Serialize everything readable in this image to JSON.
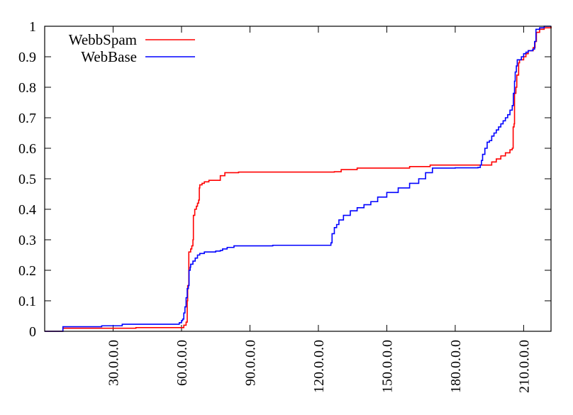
{
  "chart_data": {
    "type": "line",
    "title": "",
    "xlabel": "",
    "ylabel": "",
    "xlim": [
      0,
      222
    ],
    "ylim": [
      0,
      1
    ],
    "x_ticks": [
      30,
      60,
      90,
      120,
      150,
      180,
      210
    ],
    "x_tick_labels": [
      "30.0.0.0",
      "60.0.0.0",
      "90.0.0.0",
      "120.0.0.0",
      "150.0.0.0",
      "180.0.0.0",
      "210.0.0.0"
    ],
    "y_ticks": [
      0,
      0.1,
      0.2,
      0.3,
      0.4,
      0.5,
      0.6,
      0.7,
      0.8,
      0.9,
      1
    ],
    "y_tick_labels": [
      "0",
      "0.1",
      "0.2",
      "0.3",
      "0.4",
      "0.5",
      "0.6",
      "0.7",
      "0.8",
      "0.9",
      "1"
    ],
    "grid": false,
    "legend_position": "top-left",
    "series": [
      {
        "name": "WebbSpam",
        "color": "#ff0000",
        "points": [
          [
            0,
            0
          ],
          [
            8,
            0
          ],
          [
            8,
            0.01
          ],
          [
            20,
            0.01
          ],
          [
            40,
            0.012
          ],
          [
            58,
            0.012
          ],
          [
            61,
            0.02
          ],
          [
            62,
            0.03
          ],
          [
            62.5,
            0.1
          ],
          [
            62.7,
            0.15
          ],
          [
            63.2,
            0.26
          ],
          [
            64,
            0.27
          ],
          [
            64.5,
            0.28
          ],
          [
            65,
            0.3
          ],
          [
            65.2,
            0.38
          ],
          [
            65.8,
            0.4
          ],
          [
            66.5,
            0.41
          ],
          [
            67,
            0.42
          ],
          [
            67.5,
            0.43
          ],
          [
            67.8,
            0.47
          ],
          [
            68,
            0.48
          ],
          [
            69,
            0.485
          ],
          [
            70,
            0.49
          ],
          [
            72,
            0.495
          ],
          [
            77,
            0.495
          ],
          [
            77,
            0.51
          ],
          [
            79,
            0.52
          ],
          [
            85,
            0.522
          ],
          [
            100,
            0.522
          ],
          [
            127,
            0.523
          ],
          [
            130,
            0.53
          ],
          [
            137,
            0.535
          ],
          [
            160,
            0.54
          ],
          [
            169,
            0.545
          ],
          [
            193,
            0.545
          ],
          [
            196,
            0.555
          ],
          [
            198,
            0.565
          ],
          [
            200,
            0.575
          ],
          [
            202,
            0.585
          ],
          [
            204,
            0.595
          ],
          [
            205,
            0.6
          ],
          [
            205.4,
            0.67
          ],
          [
            205.8,
            0.68
          ],
          [
            206,
            0.78
          ],
          [
            206.6,
            0.8
          ],
          [
            207,
            0.84
          ],
          [
            207.8,
            0.88
          ],
          [
            208.2,
            0.89
          ],
          [
            210,
            0.9
          ],
          [
            211,
            0.91
          ],
          [
            212,
            0.92
          ],
          [
            214,
            0.92
          ],
          [
            214.2,
            0.93
          ],
          [
            215,
            0.95
          ],
          [
            215.6,
            0.98
          ],
          [
            217,
            0.99
          ],
          [
            219,
            0.995
          ],
          [
            222,
            1
          ]
        ]
      },
      {
        "name": "WebBase",
        "color": "#0000ff",
        "points": [
          [
            0,
            0
          ],
          [
            8,
            0
          ],
          [
            8,
            0.015
          ],
          [
            18,
            0.015
          ],
          [
            25,
            0.018
          ],
          [
            34,
            0.02
          ],
          [
            34,
            0.023
          ],
          [
            58,
            0.023
          ],
          [
            59,
            0.028
          ],
          [
            60,
            0.035
          ],
          [
            60.5,
            0.04
          ],
          [
            61,
            0.06
          ],
          [
            61.5,
            0.08
          ],
          [
            62,
            0.11
          ],
          [
            62.5,
            0.14
          ],
          [
            63,
            0.15
          ],
          [
            63.3,
            0.2
          ],
          [
            63.8,
            0.21
          ],
          [
            64,
            0.22
          ],
          [
            65,
            0.23
          ],
          [
            66,
            0.24
          ],
          [
            67,
            0.25
          ],
          [
            68,
            0.255
          ],
          [
            70,
            0.26
          ],
          [
            75,
            0.263
          ],
          [
            77,
            0.265
          ],
          [
            78,
            0.27
          ],
          [
            80,
            0.275
          ],
          [
            83,
            0.28
          ],
          [
            100,
            0.282
          ],
          [
            125,
            0.282
          ],
          [
            125.5,
            0.29
          ],
          [
            126,
            0.32
          ],
          [
            127,
            0.34
          ],
          [
            128,
            0.35
          ],
          [
            129,
            0.365
          ],
          [
            131,
            0.38
          ],
          [
            134,
            0.395
          ],
          [
            137,
            0.405
          ],
          [
            140,
            0.415
          ],
          [
            143,
            0.425
          ],
          [
            146,
            0.44
          ],
          [
            150,
            0.455
          ],
          [
            155,
            0.47
          ],
          [
            160,
            0.485
          ],
          [
            164,
            0.5
          ],
          [
            167,
            0.52
          ],
          [
            170,
            0.535
          ],
          [
            180,
            0.536
          ],
          [
            190,
            0.537
          ],
          [
            191,
            0.545
          ],
          [
            191.5,
            0.56
          ],
          [
            192,
            0.58
          ],
          [
            193,
            0.6
          ],
          [
            194,
            0.62
          ],
          [
            195,
            0.625
          ],
          [
            196,
            0.64
          ],
          [
            197,
            0.65
          ],
          [
            198,
            0.66
          ],
          [
            199,
            0.67
          ],
          [
            200,
            0.68
          ],
          [
            201,
            0.69
          ],
          [
            202,
            0.7
          ],
          [
            203,
            0.71
          ],
          [
            204,
            0.725
          ],
          [
            205,
            0.74
          ],
          [
            205.5,
            0.78
          ],
          [
            206,
            0.82
          ],
          [
            206.3,
            0.85
          ],
          [
            206.8,
            0.87
          ],
          [
            207.2,
            0.89
          ],
          [
            209,
            0.9
          ],
          [
            210,
            0.91
          ],
          [
            211,
            0.915
          ],
          [
            212,
            0.92
          ],
          [
            214,
            0.925
          ],
          [
            214.8,
            0.95
          ],
          [
            215.4,
            0.99
          ],
          [
            217,
            0.995
          ],
          [
            219,
            1
          ],
          [
            222,
            1
          ]
        ]
      }
    ]
  }
}
